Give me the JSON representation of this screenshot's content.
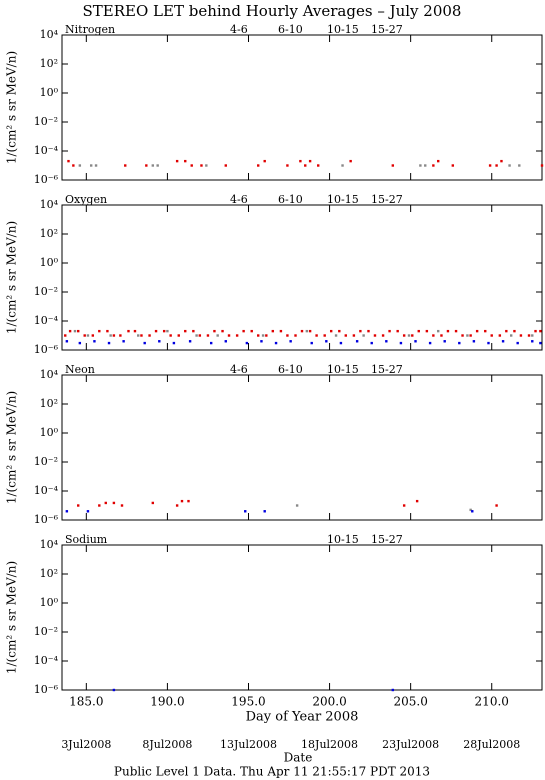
{
  "title": "STEREO LET behind Hourly Averages – July 2008",
  "chart_data": [
    {
      "type": "scatter",
      "title": "Nitrogen",
      "y_label": "1/(cm² s sr MeV/n)",
      "log_y": true,
      "xlim": [
        183.5,
        213.1
      ],
      "xticks": [
        {
          "value": 185,
          "label": "185.0"
        },
        {
          "value": 190,
          "label": "190.0"
        },
        {
          "value": 195,
          "label": "195.0"
        },
        {
          "value": 200,
          "label": "200.0"
        },
        {
          "value": 205,
          "label": "205.0"
        },
        {
          "value": 210,
          "label": "210.0"
        }
      ],
      "ylim": [
        1e-06,
        10000
      ],
      "yticks": [
        {
          "value": 10000,
          "label": "10⁴"
        },
        {
          "value": 100,
          "label": "10²"
        },
        {
          "value": 1,
          "label": "10⁰"
        },
        {
          "value": 0.01,
          "label": "10⁻²"
        },
        {
          "value": 0.0001,
          "label": "10⁻⁴"
        },
        {
          "value": 1e-06,
          "label": "10⁻⁶"
        }
      ],
      "series": [
        {
          "name": "4-6",
          "color": "#e00000",
          "x": [
            184.2,
            188.7,
            192.1,
            199.3
          ],
          "values": [
            1e-05,
            1e-05,
            1e-05,
            1e-05
          ]
        },
        {
          "name": "6-10",
          "color": "#e00000",
          "x": [
            183.9,
            187.4,
            190.6,
            191.1,
            191.5,
            193.6,
            195.6,
            196.0,
            197.4,
            198.2,
            198.5,
            198.8,
            201.3,
            203.9,
            206.4,
            206.7,
            207.6,
            209.9,
            210.3,
            210.6,
            213.1
          ],
          "values": [
            2e-05,
            1e-05,
            2e-05,
            2e-05,
            1e-05,
            1e-05,
            1e-05,
            2e-05,
            1e-05,
            2e-05,
            1e-05,
            2e-05,
            2e-05,
            1e-05,
            1e-05,
            2e-05,
            1e-05,
            1e-05,
            1e-05,
            2e-05,
            1e-05
          ]
        },
        {
          "name": "10-15",
          "color": "#888888",
          "x": [
            184.6,
            185.3,
            185.6,
            189.1,
            189.4,
            192.4,
            200.8,
            205.6,
            205.9,
            211.1,
            211.7
          ],
          "values": [
            1e-05,
            1e-05,
            1e-05,
            1e-05,
            1e-05,
            1e-05,
            1e-05,
            1e-05,
            1e-05,
            1e-05,
            1e-05
          ]
        },
        {
          "name": "15-27",
          "color": "#0000e0",
          "x": [],
          "values": []
        }
      ]
    },
    {
      "type": "scatter",
      "title": "Oxygen",
      "y_label": "1/(cm² s sr MeV/n)",
      "log_y": true,
      "xlim": [
        183.5,
        213.1
      ],
      "xticks": [
        {
          "value": 185,
          "label": "185.0"
        },
        {
          "value": 190,
          "label": "190.0"
        },
        {
          "value": 195,
          "label": "195.0"
        },
        {
          "value": 200,
          "label": "200.0"
        },
        {
          "value": 205,
          "label": "205.0"
        },
        {
          "value": 210,
          "label": "210.0"
        }
      ],
      "ylim": [
        1e-06,
        10000
      ],
      "yticks": [
        {
          "value": 10000,
          "label": "10⁴"
        },
        {
          "value": 100,
          "label": "10²"
        },
        {
          "value": 1,
          "label": "10⁰"
        },
        {
          "value": 0.01,
          "label": "10⁻²"
        },
        {
          "value": 0.0001,
          "label": "10⁻⁴"
        },
        {
          "value": 1e-06,
          "label": "10⁻⁶"
        }
      ],
      "series": [
        {
          "name": "4-6",
          "color": "#e00000",
          "x": [
            183.7,
            184.5,
            185.4,
            186.3,
            187.1,
            188.0,
            188.9,
            189.8,
            190.7,
            191.6,
            192.5,
            193.4,
            194.3,
            195.2,
            196.1,
            197.0,
            197.9,
            198.8,
            199.7,
            200.6,
            201.5,
            202.4,
            203.3,
            204.2,
            205.1,
            206.0,
            206.9,
            207.8,
            208.7,
            209.6,
            210.5,
            211.4,
            212.3,
            213.0
          ],
          "values": [
            1e-05,
            2e-05,
            1e-05,
            2e-05,
            1e-05,
            2e-05,
            1e-05,
            2e-05,
            1e-05,
            2e-05,
            1e-05,
            2e-05,
            1e-05,
            2e-05,
            1e-05,
            2e-05,
            1e-05,
            2e-05,
            1e-05,
            2e-05,
            1e-05,
            2e-05,
            1e-05,
            2e-05,
            1e-05,
            2e-05,
            1e-05,
            2e-05,
            1e-05,
            2e-05,
            1e-05,
            2e-05,
            1e-05,
            2e-05
          ]
        },
        {
          "name": "6-10",
          "color": "#e00000",
          "x": [
            184.0,
            184.9,
            185.8,
            186.7,
            187.6,
            188.4,
            189.3,
            190.2,
            191.1,
            192.0,
            192.9,
            193.8,
            194.7,
            195.6,
            196.5,
            197.4,
            198.3,
            199.2,
            200.1,
            201.0,
            201.9,
            202.8,
            203.7,
            204.6,
            205.5,
            206.4,
            207.3,
            208.2,
            209.1,
            210.0,
            210.9,
            211.8,
            212.7
          ],
          "values": [
            2e-05,
            1e-05,
            2e-05,
            1e-05,
            2e-05,
            1e-05,
            2e-05,
            1e-05,
            2e-05,
            1e-05,
            2e-05,
            1e-05,
            2e-05,
            1e-05,
            2e-05,
            1e-05,
            2e-05,
            1e-05,
            2e-05,
            1e-05,
            2e-05,
            1e-05,
            2e-05,
            1e-05,
            2e-05,
            1e-05,
            2e-05,
            1e-05,
            2e-05,
            1e-05,
            2e-05,
            1e-05,
            2e-05
          ]
        },
        {
          "name": "10-15",
          "color": "#888888",
          "x": [
            184.3,
            185.1,
            186.5,
            188.2,
            190.0,
            191.8,
            193.1,
            195.9,
            198.6,
            200.4,
            202.1,
            204.9,
            206.7,
            208.5,
            211.2,
            212.5
          ],
          "values": [
            2e-05,
            1e-05,
            1e-05,
            1e-05,
            2e-05,
            1e-05,
            1e-05,
            1e-05,
            2e-05,
            1e-05,
            1e-05,
            1e-05,
            2e-05,
            1e-05,
            1e-05,
            1e-05
          ]
        },
        {
          "name": "15-27",
          "color": "#0000e0",
          "x": [
            183.8,
            184.6,
            185.5,
            186.4,
            187.3,
            188.6,
            189.5,
            190.4,
            191.4,
            192.7,
            193.6,
            194.9,
            195.8,
            196.7,
            197.6,
            198.9,
            199.8,
            200.7,
            201.7,
            202.6,
            203.5,
            204.4,
            205.3,
            206.2,
            207.1,
            208.0,
            208.9,
            209.8,
            210.7,
            211.6,
            212.5,
            213.0
          ],
          "values": [
            4e-06,
            3e-06,
            4e-06,
            3e-06,
            4e-06,
            3e-06,
            4e-06,
            3e-06,
            4e-06,
            3e-06,
            4e-06,
            3e-06,
            4e-06,
            3e-06,
            4e-06,
            3e-06,
            4e-06,
            3e-06,
            4e-06,
            3e-06,
            4e-06,
            3e-06,
            4e-06,
            3e-06,
            4e-06,
            3e-06,
            4e-06,
            3e-06,
            4e-06,
            3e-06,
            4e-06,
            3e-06
          ]
        }
      ]
    },
    {
      "type": "scatter",
      "title": "Neon",
      "y_label": "1/(cm² s sr MeV/n)",
      "log_y": true,
      "xlim": [
        183.5,
        213.1
      ],
      "xticks": [
        {
          "value": 185,
          "label": "185.0"
        },
        {
          "value": 190,
          "label": "190.0"
        },
        {
          "value": 195,
          "label": "195.0"
        },
        {
          "value": 200,
          "label": "200.0"
        },
        {
          "value": 205,
          "label": "205.0"
        },
        {
          "value": 210,
          "label": "210.0"
        }
      ],
      "ylim": [
        1e-06,
        10000
      ],
      "yticks": [
        {
          "value": 10000,
          "label": "10⁴"
        },
        {
          "value": 100,
          "label": "10²"
        },
        {
          "value": 1,
          "label": "10⁰"
        },
        {
          "value": 0.01,
          "label": "10⁻²"
        },
        {
          "value": 0.0001,
          "label": "10⁻⁴"
        },
        {
          "value": 1e-06,
          "label": "10⁻⁶"
        }
      ],
      "series": [
        {
          "name": "4-6",
          "color": "#e00000",
          "x": [
            186.2,
            189.1
          ],
          "values": [
            1.5e-05,
            1.5e-05
          ]
        },
        {
          "name": "6-10",
          "color": "#e00000",
          "x": [
            184.5,
            185.8,
            186.7,
            187.2,
            190.6,
            190.9,
            191.3,
            204.6,
            205.4,
            210.3
          ],
          "values": [
            1e-05,
            1e-05,
            1.5e-05,
            1e-05,
            1e-05,
            2e-05,
            2e-05,
            1e-05,
            2e-05,
            1e-05
          ]
        },
        {
          "name": "10-15",
          "color": "#888888",
          "x": [
            198.0,
            208.7
          ],
          "values": [
            1e-05,
            5e-06
          ]
        },
        {
          "name": "15-27",
          "color": "#0000e0",
          "x": [
            183.8,
            185.1,
            194.8,
            196.0,
            208.8
          ],
          "values": [
            4e-06,
            4e-06,
            4e-06,
            4e-06,
            4e-06
          ]
        }
      ]
    },
    {
      "type": "scatter",
      "title": "Sodium",
      "y_label": "1/(cm² s sr MeV/n)",
      "log_y": true,
      "xlim": [
        183.5,
        213.1
      ],
      "xticks": [
        {
          "value": 185,
          "label": "185.0"
        },
        {
          "value": 190,
          "label": "190.0"
        },
        {
          "value": 195,
          "label": "195.0"
        },
        {
          "value": 200,
          "label": "200.0"
        },
        {
          "value": 205,
          "label": "205.0"
        },
        {
          "value": 210,
          "label": "210.0"
        }
      ],
      "ylim": [
        1e-06,
        10000
      ],
      "yticks": [
        {
          "value": 10000,
          "label": "10⁴"
        },
        {
          "value": 100,
          "label": "10²"
        },
        {
          "value": 1,
          "label": "10⁰"
        },
        {
          "value": 0.01,
          "label": "10⁻²"
        },
        {
          "value": 0.0001,
          "label": "10⁻⁴"
        },
        {
          "value": 1e-06,
          "label": "10⁻⁶"
        }
      ],
      "x_label": "Day of Year 2008",
      "series": [
        {
          "name": "10-15",
          "color": "#888888",
          "x": [],
          "values": []
        },
        {
          "name": "15-27",
          "color": "#0000e0",
          "x": [
            186.7,
            203.9
          ],
          "values": [
            1e-06,
            1e-06
          ]
        }
      ]
    }
  ],
  "date_axis": {
    "label": "Date",
    "ticks": [
      {
        "value": 185,
        "label": "3Jul2008"
      },
      {
        "value": 190,
        "label": "8Jul2008"
      },
      {
        "value": 195,
        "label": "13Jul2008"
      },
      {
        "value": 200,
        "label": "18Jul2008"
      },
      {
        "value": 205,
        "label": "23Jul2008"
      },
      {
        "value": 210,
        "label": "28Jul2008"
      }
    ]
  },
  "footer": "Public Level 1 Data. Thu Apr 11 21:55:17 PDT 2013"
}
